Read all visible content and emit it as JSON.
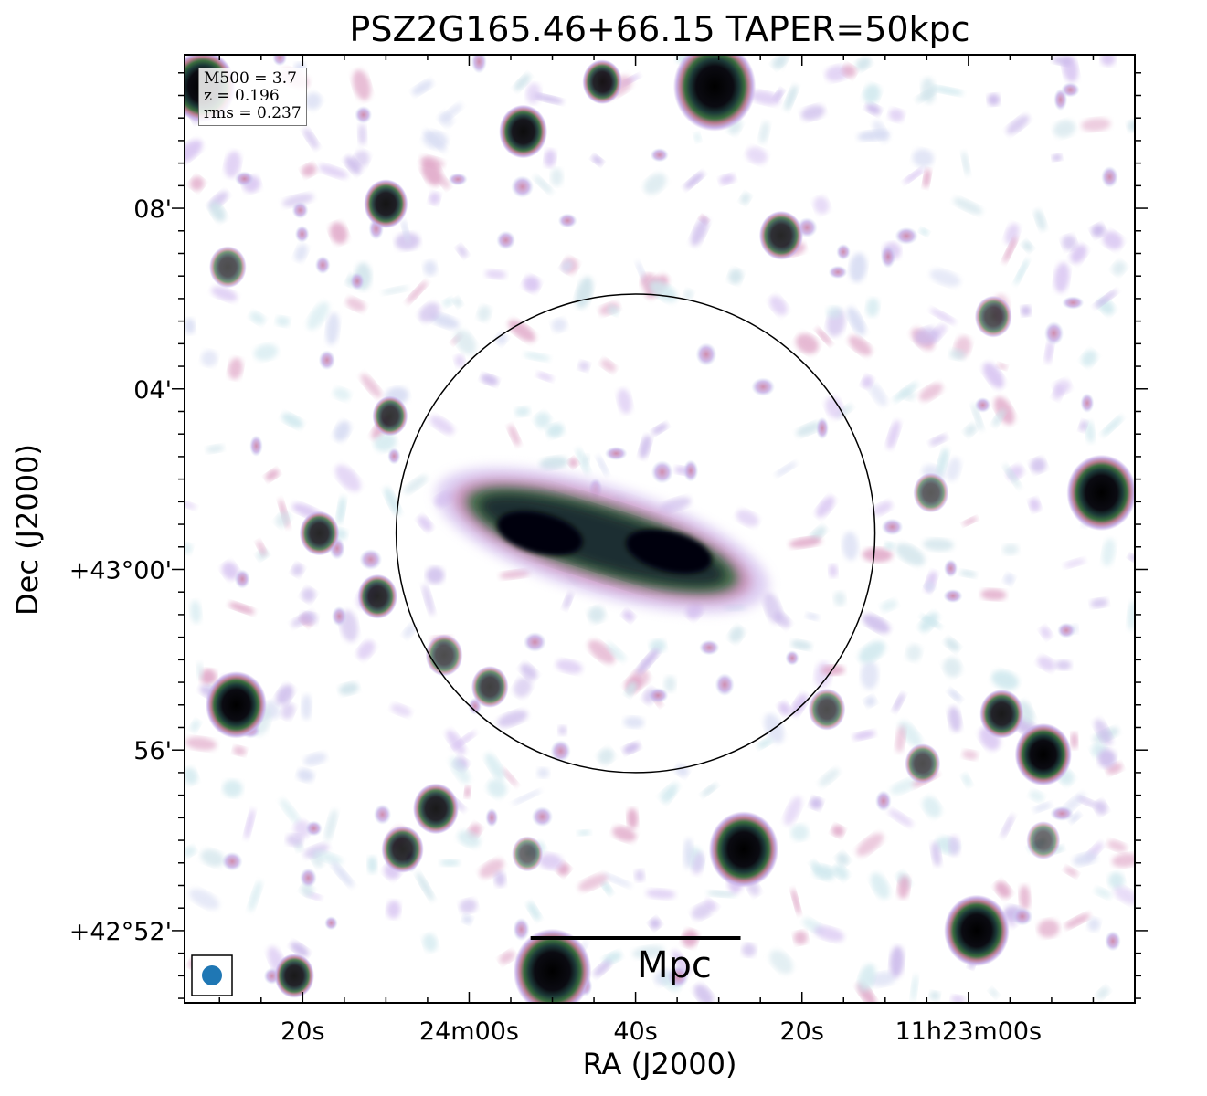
{
  "title": "PSZ2G165.46+66.15 TAPER=50kpc",
  "chart_data": {
    "type": "heatmap",
    "title": "PSZ2G165.46+66.15 TAPER=50kpc",
    "xlabel": "RA (J2000)",
    "ylabel": "Dec (J2000)",
    "x_ticks": [
      {
        "label": "20s",
        "ra_offset_s": 100
      },
      {
        "label": "24m00s",
        "ra_offset_s": 80
      },
      {
        "label": "40s",
        "ra_offset_s": 60
      },
      {
        "label": "20s",
        "ra_offset_s": 40
      },
      {
        "label": "11h23m00s",
        "ra_offset_s": 20
      }
    ],
    "y_ticks": [
      {
        "label": "08'",
        "dec_arcmin": 8
      },
      {
        "label": "04'",
        "dec_arcmin": 4
      },
      {
        "label": "+43°00'",
        "dec_arcmin": 0
      },
      {
        "label": "56'",
        "dec_arcmin": -4
      },
      {
        "label": "+42°52'",
        "dec_arcmin": -8
      }
    ],
    "x_range_ra_offset_s": [
      114.2,
      0
    ],
    "y_range_dec_arcmin": [
      -9.6,
      11.4
    ],
    "colormap": "cubehelix_r",
    "info": {
      "m500": "M500 = 3.7",
      "z": "z = 0.196",
      "rms": "rms = 0.237"
    },
    "circle": {
      "center_ra_offset_s": 60,
      "center_dec_arcmin": 0.8,
      "radius_arcmin": 5.3
    },
    "scalebar": {
      "label": "Mpc",
      "length_arcmin": 4.65
    },
    "sources": [
      {
        "ra": 112,
        "dec": 10.7,
        "size": 0.55,
        "level": 1.0
      },
      {
        "ra": 73.5,
        "dec": 9.7,
        "size": 0.35,
        "level": 0.95
      },
      {
        "ra": 64,
        "dec": 10.8,
        "size": 0.25,
        "level": 0.9
      },
      {
        "ra": 50.5,
        "dec": 10.7,
        "size": 0.75,
        "level": 1.0
      },
      {
        "ra": 90,
        "dec": 8.1,
        "size": 0.3,
        "level": 0.92
      },
      {
        "ra": 42.5,
        "dec": 7.4,
        "size": 0.3,
        "level": 0.85
      },
      {
        "ra": 109,
        "dec": 6.7,
        "size": 0.22,
        "level": 0.7
      },
      {
        "ra": 17,
        "dec": 5.6,
        "size": 0.22,
        "level": 0.7
      },
      {
        "ra": 4,
        "dec": 1.7,
        "size": 0.6,
        "level": 1.0
      },
      {
        "ra": 24.5,
        "dec": 1.7,
        "size": 0.2,
        "level": 0.65
      },
      {
        "ra": 98,
        "dec": 0.8,
        "size": 0.25,
        "level": 0.85
      },
      {
        "ra": 89.5,
        "dec": 3.4,
        "size": 0.2,
        "level": 0.8
      },
      {
        "ra": 89.5,
        "dec": 0.6,
        "size": 0.0,
        "level": 0.0
      },
      {
        "ra": 91,
        "dec": -0.6,
        "size": 0.25,
        "level": 0.85
      },
      {
        "ra": 108,
        "dec": -3.0,
        "size": 0.5,
        "level": 1.0
      },
      {
        "ra": 83,
        "dec": -1.9,
        "size": 0.22,
        "level": 0.7
      },
      {
        "ra": 77.5,
        "dec": -2.6,
        "size": 0.22,
        "level": 0.75
      },
      {
        "ra": 37,
        "dec": -3.1,
        "size": 0.22,
        "level": 0.7
      },
      {
        "ra": 16,
        "dec": -3.2,
        "size": 0.3,
        "level": 0.9
      },
      {
        "ra": 11,
        "dec": -4.1,
        "size": 0.45,
        "level": 1.0
      },
      {
        "ra": 25.5,
        "dec": -4.3,
        "size": 0.2,
        "level": 0.7
      },
      {
        "ra": 84,
        "dec": -5.3,
        "size": 0.32,
        "level": 0.9
      },
      {
        "ra": 88,
        "dec": -6.2,
        "size": 0.28,
        "level": 0.85
      },
      {
        "ra": 47,
        "dec": -6.2,
        "size": 0.6,
        "level": 1.0
      },
      {
        "ra": 73,
        "dec": -6.3,
        "size": 0.15,
        "level": 0.6
      },
      {
        "ra": 19,
        "dec": -8.0,
        "size": 0.55,
        "level": 1.0
      },
      {
        "ra": 70,
        "dec": -8.9,
        "size": 0.7,
        "level": 1.0
      },
      {
        "ra": 101,
        "dec": -9.0,
        "size": 0.25,
        "level": 0.9
      },
      {
        "ra": 11,
        "dec": -6.0,
        "size": 0.18,
        "level": 0.6
      }
    ],
    "extended_emission": {
      "description_level": 1.0,
      "center_ra_offset_s": 64,
      "center_dec_arcmin": 0.65,
      "peaks": [
        {
          "ra": 71.5,
          "dec": 0.8,
          "level": 1.0
        },
        {
          "ra": 56,
          "dec": 0.4,
          "level": 1.0
        }
      ]
    }
  }
}
